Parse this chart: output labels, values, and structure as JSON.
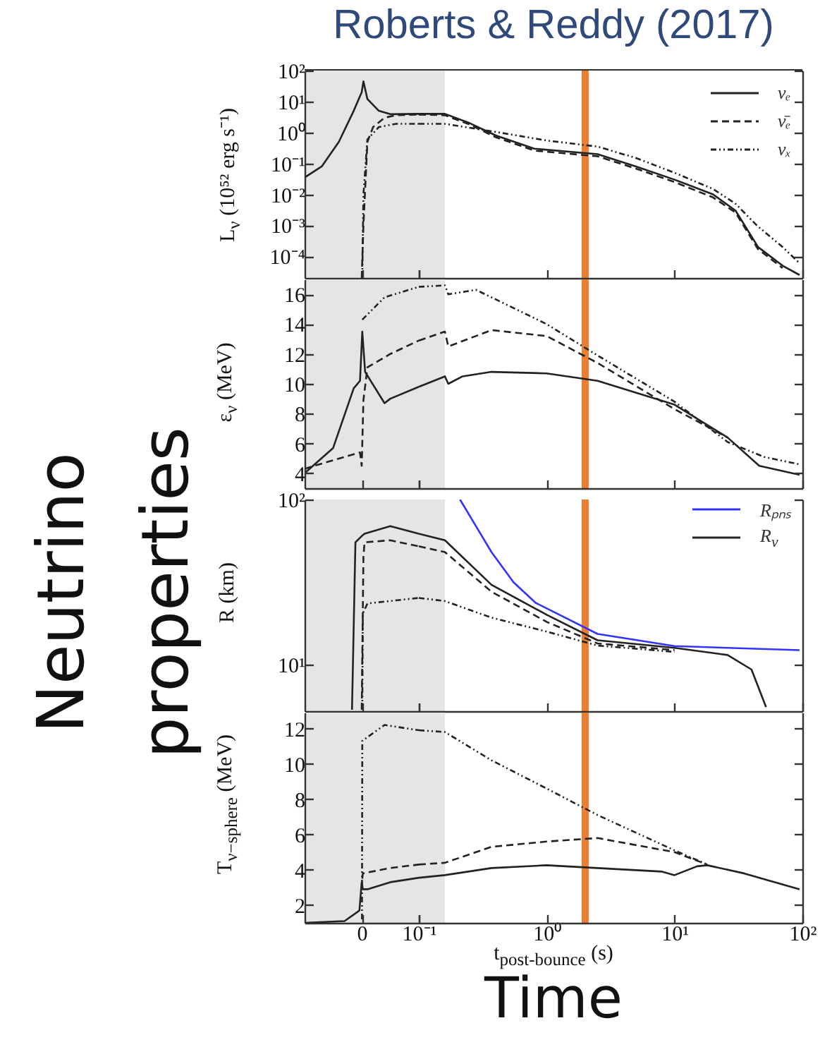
{
  "chart_data": [
    {
      "type": "line",
      "title": "Roberts & Reddy (2017)",
      "annotations": [
        "Neutrino properties",
        "Time"
      ],
      "ylabel": "L$_{ν}$ (10⁵² erg s⁻¹)",
      "log": "y",
      "xlim": [
        -0.1,
        0.1
      ],
      "xticks": [
        {
          "value": 0,
          "label": null
        },
        {
          "value": 0.1,
          "label": null
        }
      ],
      "ylim": [
        2e-05,
        100
      ],
      "yticks": [
        {
          "value": 0.0001,
          "label": "10⁻⁴"
        },
        {
          "value": 0.001,
          "label": "10⁻³"
        },
        {
          "value": 0.01,
          "label": "10⁻²"
        },
        {
          "value": 0.1,
          "label": "10⁻¹"
        },
        {
          "value": 1,
          "label": "10⁰"
        },
        {
          "value": 10,
          "label": "10¹"
        },
        {
          "value": 100,
          "label": "10²"
        }
      ],
      "tick_labels": "y",
      "bands": [
        {
          "axis": "x",
          "from": -0.1,
          "to": 0.1,
          "color": "#e5e5e5"
        }
      ],
      "series": [
        {
          "color": "#222222",
          "line_style": "solid",
          "x": [
            -0.1,
            -0.07,
            -0.04,
            -0.014,
            0,
            0.003,
            0.01,
            0.03,
            0.05,
            0.1
          ],
          "values": [
            0.035,
            0.08,
            0.5,
            5,
            20,
            45,
            12,
            5,
            3.9,
            4
          ]
        },
        {
          "color": "#222222",
          "line_style": "dashed",
          "x": [
            0,
            0.003,
            0.01,
            0.02,
            0.04,
            0.06,
            0.1
          ],
          "values": [
            2e-05,
            0.001,
            0.5,
            1.5,
            3,
            3.6,
            3.8
          ]
        },
        {
          "color": "#222222",
          "line_style": "dotted",
          "x": [
            0.001,
            0.003,
            0.01,
            0.03,
            0.06,
            0.1
          ],
          "values": [
            2e-05,
            0.01,
            0.6,
            1.5,
            1.9,
            1.9
          ]
        }
      ]
    },
    {
      "type": "line",
      "log": "xy",
      "xlim": [
        0.1,
        100
      ],
      "xticks": [
        {
          "value": 0.1,
          "label": null
        },
        {
          "value": 1,
          "label": null
        },
        {
          "value": 10,
          "label": null
        },
        {
          "value": 100,
          "label": null
        }
      ],
      "ylim": [
        2e-05,
        100
      ],
      "yticks": [
        {
          "value": 0.0001,
          "label": null
        },
        {
          "value": 0.001,
          "label": null
        },
        {
          "value": 0.01,
          "label": null
        },
        {
          "value": 0.1,
          "label": null
        },
        {
          "value": 1,
          "label": null
        },
        {
          "value": 10,
          "label": null
        },
        {
          "value": 100,
          "label": null
        }
      ],
      "tick_labels": false,
      "legend": "top right",
      "bands": [
        {
          "axis": "x",
          "from": 0.1,
          "to": 0.16,
          "color": "#e5e5e5"
        }
      ],
      "ref_lines": [
        {
          "axis": "x",
          "value": 2,
          "color": "#ed7d31"
        }
      ],
      "series": [
        {
          "name": "νₑ",
          "color": "#222222",
          "line_style": "solid",
          "x": [
            0.1,
            0.16,
            0.25,
            0.4,
            0.8,
            2.5,
            5,
            10,
            20,
            30,
            45,
            70,
            95
          ],
          "values": [
            4,
            4,
            2,
            0.8,
            0.3,
            0.2,
            0.08,
            0.03,
            0.01,
            0.003,
            0.0002,
            5e-05,
            2.5e-05
          ]
        },
        {
          "name": "ν̄ₑ",
          "color": "#222222",
          "line_style": "dashed",
          "x": [
            0.1,
            0.16,
            0.25,
            0.4,
            0.8,
            2.5,
            5,
            10,
            20,
            30,
            45,
            70
          ],
          "values": [
            3.8,
            3.6,
            1.8,
            0.7,
            0.26,
            0.17,
            0.068,
            0.025,
            0.008,
            0.0026,
            0.00017,
            4.2e-05
          ]
        },
        {
          "name": "νₓ",
          "color": "#222222",
          "line_style": "dotted",
          "x": [
            0.1,
            0.16,
            0.37,
            1,
            2.5,
            5,
            10,
            20,
            30,
            44,
            70,
            95
          ],
          "values": [
            1.9,
            1.9,
            1.1,
            0.55,
            0.35,
            0.15,
            0.05,
            0.015,
            0.005,
            0.001,
            0.0002,
            6e-05
          ]
        }
      ]
    },
    {
      "type": "line",
      "ylabel": "ε$_{ν}$ (MeV)",
      "xlim": [
        -0.1,
        0.1
      ],
      "xticks": [
        {
          "value": 0,
          "label": null
        },
        {
          "value": 0.1,
          "label": null
        }
      ],
      "ylim": [
        3,
        17
      ],
      "yticks": [
        4,
        6,
        8,
        10,
        12,
        14,
        16
      ],
      "tick_labels": "y",
      "bands": [
        {
          "axis": "x",
          "from": -0.1,
          "to": 0.1,
          "color": "#e5e5e5"
        }
      ],
      "series": [
        {
          "color": "#222222",
          "line_style": "solid",
          "x": [
            -0.1,
            -0.05,
            -0.014,
            -0.003,
            0.001,
            0.006,
            0.04,
            0.05,
            0.1
          ],
          "values": [
            4,
            5.7,
            9.7,
            10.2,
            13.5,
            10.8,
            8.7,
            9,
            9.8
          ]
        },
        {
          "color": "#222222",
          "line_style": "dashed",
          "x": [
            -0.1,
            -0.057,
            -0.003,
            0,
            0.003,
            0.01,
            0.05,
            0.1
          ],
          "values": [
            4.3,
            4.8,
            5.4,
            4.5,
            8.9,
            11.1,
            12,
            12.9
          ]
        },
        {
          "color": "#222222",
          "line_style": "dotted",
          "x": [
            0.001,
            0.04,
            0.1
          ],
          "values": [
            14.3,
            15.8,
            16.5
          ]
        }
      ]
    },
    {
      "type": "line",
      "log": "x",
      "xlim": [
        0.1,
        100
      ],
      "xticks": [
        {
          "value": 0.1,
          "label": null
        },
        {
          "value": 1,
          "label": null
        },
        {
          "value": 10,
          "label": null
        },
        {
          "value": 100,
          "label": null
        }
      ],
      "ylim": [
        3,
        17
      ],
      "yticks": [
        {
          "value": 4,
          "label": null
        },
        {
          "value": 6,
          "label": null
        },
        {
          "value": 8,
          "label": null
        },
        {
          "value": 10,
          "label": null
        },
        {
          "value": 12,
          "label": null
        },
        {
          "value": 14,
          "label": null
        },
        {
          "value": 16,
          "label": null
        }
      ],
      "tick_labels": false,
      "bands": [
        {
          "axis": "x",
          "from": 0.1,
          "to": 0.16,
          "color": "#e5e5e5"
        }
      ],
      "ref_lines": [
        {
          "axis": "x",
          "value": 2,
          "color": "#ed7d31"
        }
      ],
      "series": [
        {
          "color": "#222222",
          "line_style": "solid",
          "x": [
            0.1,
            0.16,
            0.17,
            0.22,
            0.37,
            1,
            2.5,
            10,
            26,
            46,
            95
          ],
          "values": [
            9.8,
            10.5,
            10,
            10.5,
            10.8,
            10.7,
            10.2,
            8.6,
            6.4,
            4.5,
            3.9
          ]
        },
        {
          "color": "#222222",
          "line_style": "dashed",
          "x": [
            0.1,
            0.16,
            0.17,
            0.37,
            1,
            2.5,
            10,
            26
          ],
          "values": [
            12.9,
            13.5,
            12.5,
            13.6,
            13.2,
            11.4,
            8.3,
            6.4
          ]
        },
        {
          "color": "#222222",
          "line_style": "dotted",
          "x": [
            0.1,
            0.16,
            0.17,
            0.28,
            1,
            2.5,
            10,
            26,
            50,
            95
          ],
          "values": [
            16.5,
            16.6,
            16,
            16.3,
            14,
            11.9,
            8.8,
            6.1,
            5.1,
            4.6
          ]
        }
      ]
    },
    {
      "type": "line",
      "ylabel": "R (km)",
      "log": "y",
      "xlim": [
        -0.1,
        0.1
      ],
      "xticks": [
        {
          "value": 0,
          "label": null
        },
        {
          "value": 0.1,
          "label": null
        }
      ],
      "ylim": [
        5.2,
        100
      ],
      "yticks": [
        {
          "value": 10,
          "label": "10¹"
        },
        {
          "value": 100,
          "label": "10²"
        }
      ],
      "tick_labels": "y",
      "bands": [
        {
          "axis": "x",
          "from": -0.1,
          "to": 0.1,
          "color": "#e5e5e5"
        }
      ],
      "series": [
        {
          "color": "#222222",
          "line_style": "solid",
          "x": [
            -0.017,
            -0.011,
            0,
            0.005,
            0.05,
            0.1
          ],
          "values": [
            5.3,
            55,
            60,
            62,
            69,
            62
          ]
        },
        {
          "color": "#222222",
          "line_style": "dashed",
          "x": [
            0,
            0.003,
            0.005,
            0.05,
            0.1
          ],
          "values": [
            5.3,
            45,
            55,
            56.6,
            52
          ]
        },
        {
          "color": "#222222",
          "line_style": "dotted",
          "x": [
            0.001,
            0.002,
            0.01,
            0.1
          ],
          "values": [
            5.3,
            20.4,
            23.4,
            25.3
          ]
        }
      ]
    },
    {
      "type": "line",
      "log": "xy",
      "xlim": [
        0.1,
        100
      ],
      "xticks": [
        {
          "value": 0.1,
          "label": null
        },
        {
          "value": 1,
          "label": null
        },
        {
          "value": 10,
          "label": null
        },
        {
          "value": 100,
          "label": null
        }
      ],
      "ylim": [
        5.2,
        100
      ],
      "yticks": [
        {
          "value": 10,
          "label": null
        },
        {
          "value": 100,
          "label": null
        }
      ],
      "tick_labels": false,
      "legend": "top right",
      "bands": [
        {
          "axis": "x",
          "from": 0.1,
          "to": 0.16,
          "color": "#e5e5e5"
        }
      ],
      "ref_lines": [
        {
          "axis": "x",
          "value": 2,
          "color": "#ed7d31"
        }
      ],
      "series": [
        {
          "name": "Rₚₙₛ",
          "color": "#3333ff",
          "line_style": "solid",
          "x": [
            0.21,
            0.37,
            0.55,
            0.82,
            2.5,
            10,
            95
          ],
          "values": [
            100,
            48,
            31.5,
            23.6,
            15.3,
            12.9,
            12.2
          ]
        },
        {
          "name": "R$_{ν}$",
          "color": "#222222",
          "line_style": "solid",
          "x": [
            0.1,
            0.16,
            0.37,
            1,
            2.5,
            10,
            26,
            40,
            52
          ],
          "values": [
            62,
            56.6,
            30.4,
            20,
            14,
            12.6,
            11.4,
            9.3,
            5.5
          ]
        },
        {
          "color": "#222222",
          "line_style": "dashed",
          "x": [
            0.1,
            0.16,
            0.37,
            1,
            2.5,
            10
          ],
          "values": [
            52,
            48,
            27.6,
            18.1,
            13.4,
            12.2
          ]
        },
        {
          "color": "#222222",
          "line_style": "dotted",
          "x": [
            0.1,
            0.16,
            0.37,
            1,
            2.5,
            10
          ],
          "values": [
            25.3,
            24.2,
            19.2,
            15.8,
            13,
            11.9
          ]
        }
      ]
    },
    {
      "type": "line",
      "ylabel": "T$_{ν−sphere}$ (MeV)",
      "xlim": [
        -0.1,
        0.1
      ],
      "xticks": [
        0,
        {
          "value": 0.1,
          "label": "10⁻¹"
        }
      ],
      "ylim": [
        1,
        12.9
      ],
      "yticks": [
        2,
        4,
        6,
        8,
        10,
        12
      ],
      "bands": [
        {
          "axis": "x",
          "from": -0.1,
          "to": 0.1,
          "color": "#e5e5e5"
        }
      ],
      "series": [
        {
          "color": "#222222",
          "line_style": "solid",
          "x": [
            -0.1,
            -0.03,
            -0.004,
            0,
            0.002,
            0.01,
            0.05,
            0.1
          ],
          "values": [
            1,
            1.1,
            1.7,
            3.3,
            2.9,
            2.9,
            3.3,
            3.55
          ]
        },
        {
          "color": "#222222",
          "line_style": "dashed",
          "x": [
            0.001,
            0.002,
            0.05,
            0.1
          ],
          "values": [
            3.5,
            3.8,
            4.1,
            4.3
          ]
        },
        {
          "color": "#222222",
          "line_style": "dotted",
          "x": [
            0.0005,
            0.001,
            0.04,
            0.1
          ],
          "values": [
            1.2,
            11.3,
            12.2,
            11.9
          ]
        }
      ]
    },
    {
      "type": "line",
      "xlabel": "t$_{post-bounce}$ (s)",
      "log": "x",
      "xlim": [
        0.1,
        100
      ],
      "xticks": [
        {
          "value": 0.1,
          "label": null
        },
        {
          "value": 1,
          "label": "10⁰"
        },
        {
          "value": 10,
          "label": "10¹"
        },
        {
          "value": 100,
          "label": "10²"
        }
      ],
      "ylim": [
        1,
        12.9
      ],
      "yticks": [
        {
          "value": 2,
          "label": null
        },
        {
          "value": 4,
          "label": null
        },
        {
          "value": 6,
          "label": null
        },
        {
          "value": 8,
          "label": null
        },
        {
          "value": 10,
          "label": null
        },
        {
          "value": 12,
          "label": null
        }
      ],
      "tick_labels": "x",
      "bands": [
        {
          "axis": "x",
          "from": 0.1,
          "to": 0.16,
          "color": "#e5e5e5"
        }
      ],
      "ref_lines": [
        {
          "axis": "x",
          "value": 2,
          "color": "#ed7d31"
        }
      ],
      "series": [
        {
          "color": "#222222",
          "line_style": "solid",
          "x": [
            0.1,
            0.16,
            0.37,
            1,
            2.5,
            8,
            10,
            15,
            18,
            35,
            95
          ],
          "values": [
            3.55,
            3.7,
            4.1,
            4.26,
            4.1,
            3.9,
            3.7,
            4.2,
            4.26,
            3.8,
            2.9
          ]
        },
        {
          "color": "#222222",
          "line_style": "dashed",
          "x": [
            0.1,
            0.16,
            0.37,
            1,
            2.5,
            10,
            18
          ],
          "values": [
            4.3,
            4.4,
            5.3,
            5.6,
            5.8,
            5,
            4.3
          ]
        },
        {
          "color": "#222222",
          "line_style": "dotted",
          "x": [
            0.1,
            0.16,
            0.37,
            1,
            2.5,
            10,
            18
          ],
          "values": [
            11.9,
            11.8,
            10.2,
            8.6,
            7.1,
            5.1,
            4.3
          ]
        }
      ]
    }
  ]
}
